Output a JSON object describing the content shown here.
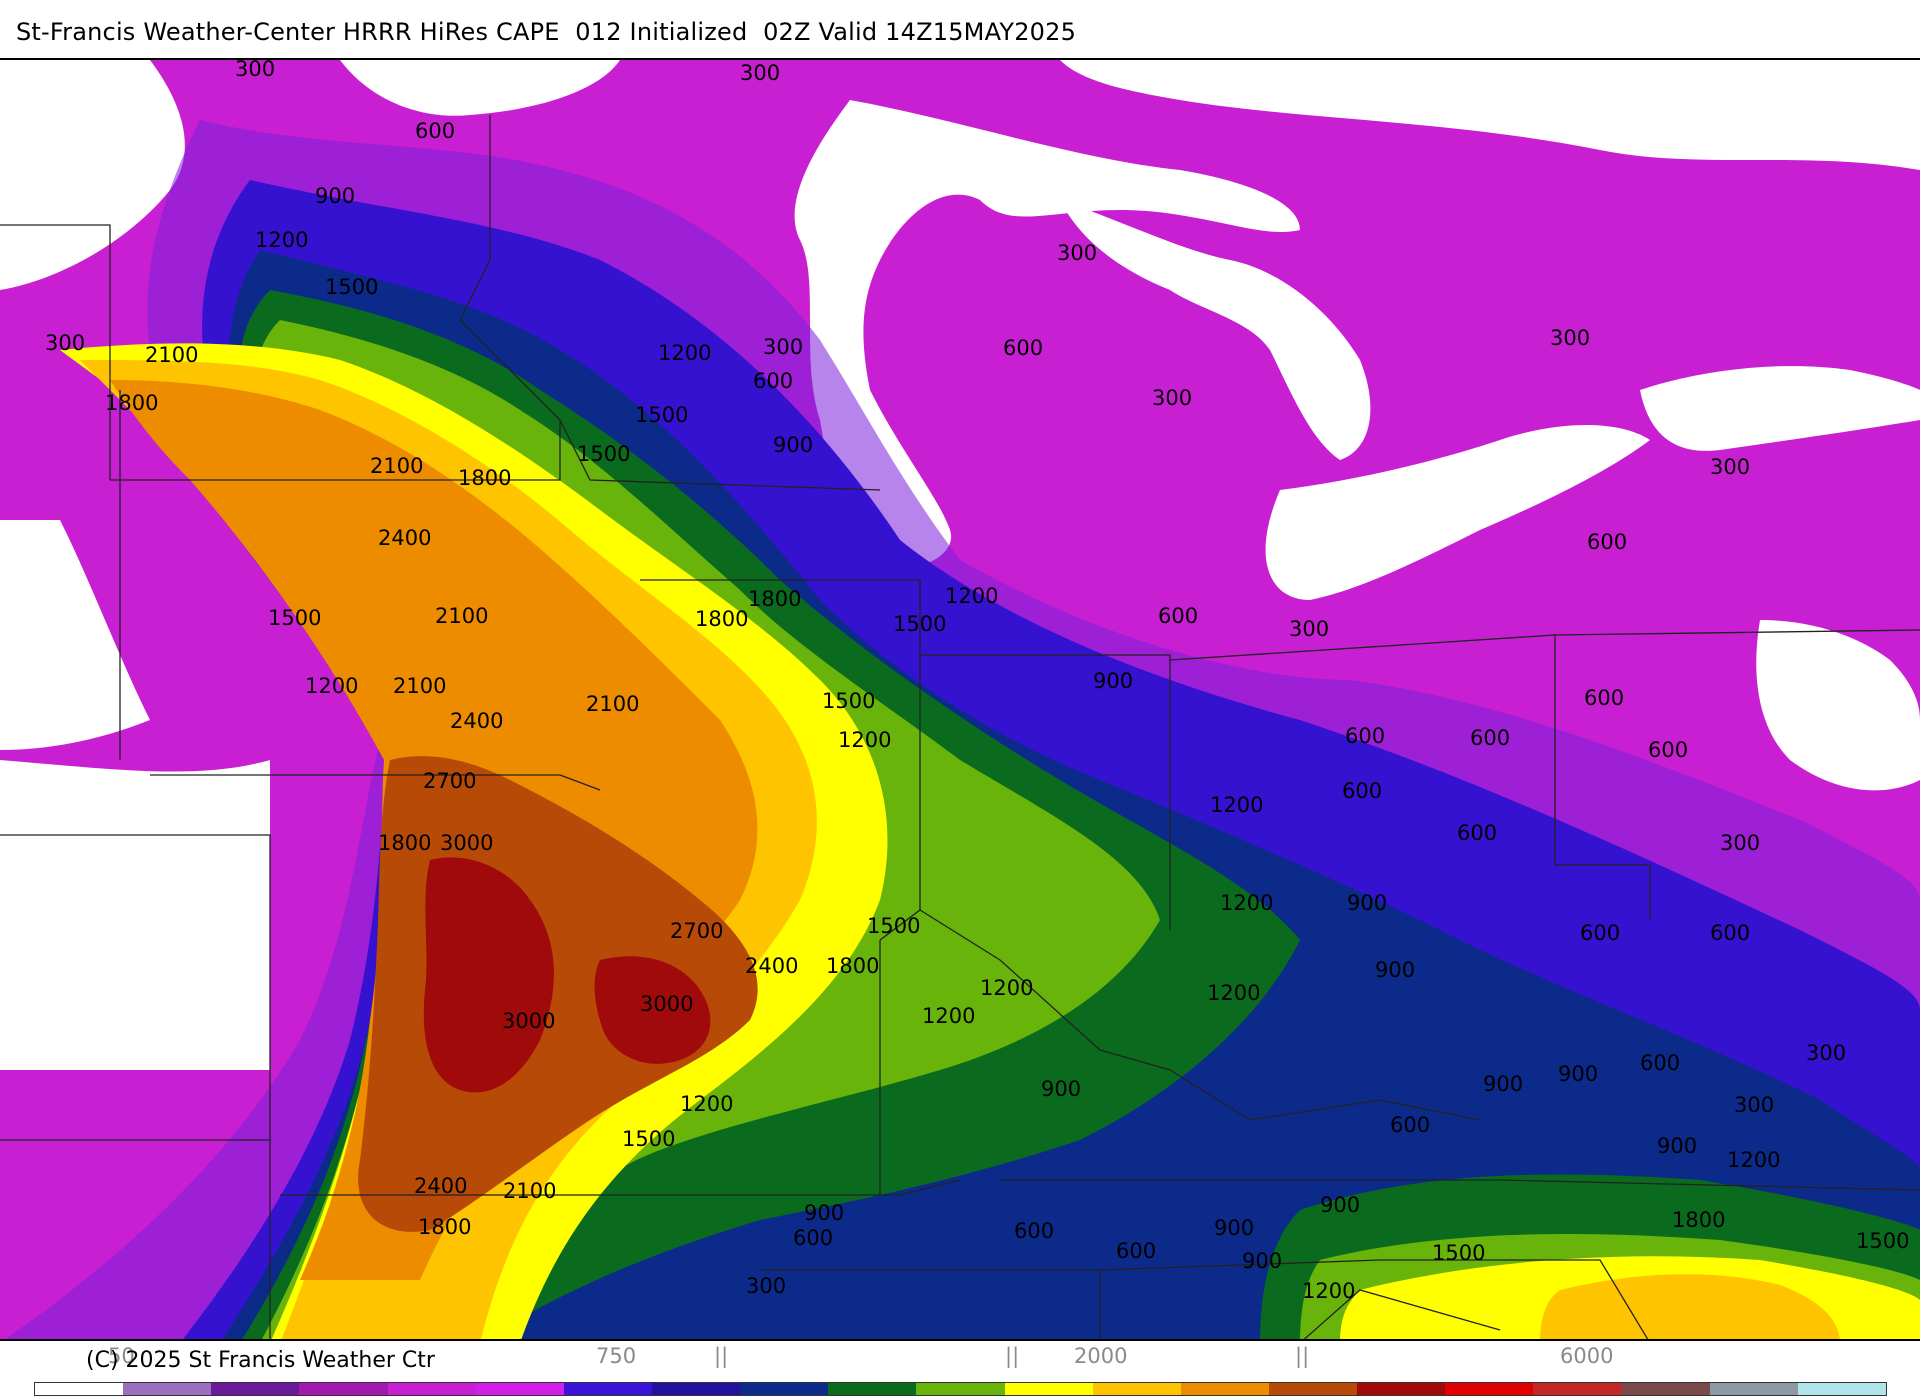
{
  "title": "St-Francis Weather-Center HRRR HiRes CAPE  012 Initialized  02Z Valid 14Z15MAY2025",
  "copyright": "(C) 2025 St Francis Weather Ctr",
  "colorbar": {
    "colors": [
      "#ffffff",
      "#9b6fbf",
      "#6a1b9a",
      "#a01ab0",
      "#c81fd2",
      "#d21ee8",
      "#3a12d9",
      "#23129e",
      "#0b2a8a",
      "#0a6b1f",
      "#68b40a",
      "#ffff00",
      "#ffc400",
      "#ee8c00",
      "#b84a08",
      "#a00a0a",
      "#e00000",
      "#c22828",
      "#7a4a4a",
      "#8c99a3",
      "#aee4ea"
    ],
    "tick_labels": [
      "50",
      "750",
      "2000",
      "6000"
    ],
    "tick_marks": [
      "||",
      "||",
      "||"
    ]
  },
  "contour_labels": [
    "300",
    "600",
    "900",
    "1200",
    "1500",
    "1800",
    "2100",
    "2400",
    "2700",
    "3000"
  ]
}
